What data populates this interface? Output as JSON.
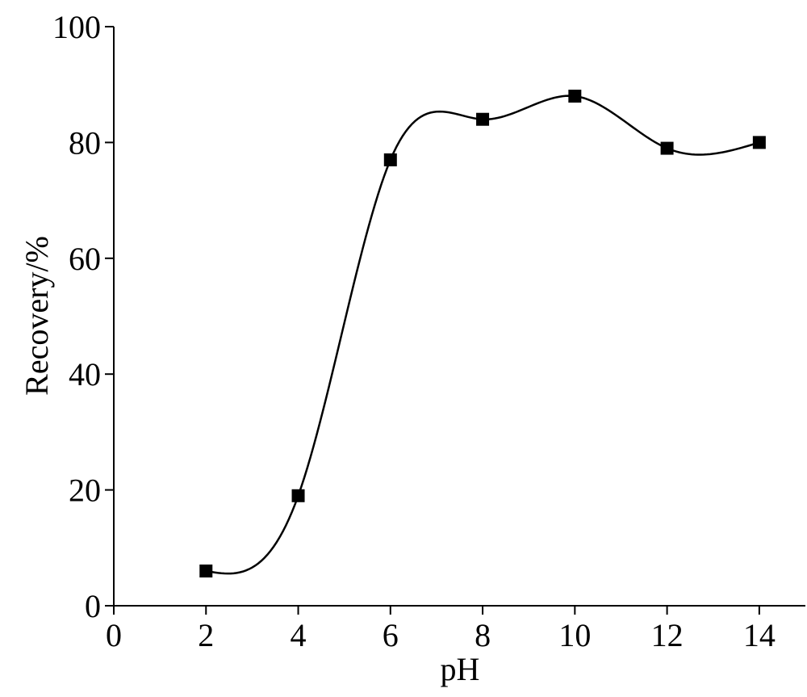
{
  "chart_data": {
    "type": "line",
    "x_label": "pH",
    "y_label": "Recovery/%",
    "x": [
      2,
      4,
      6,
      8,
      10,
      12,
      14
    ],
    "series": [
      {
        "color": "#000000",
        "values": [
          6,
          19,
          77,
          84,
          88,
          79,
          80
        ]
      }
    ],
    "xlim": [
      0,
      15
    ],
    "xticks": [
      0,
      2,
      4,
      6,
      8,
      10,
      12,
      14
    ],
    "ylim": [
      0,
      100
    ],
    "yticks": [
      0,
      20,
      40,
      60,
      80,
      100
    ],
    "smooth": true,
    "marker": "square"
  }
}
